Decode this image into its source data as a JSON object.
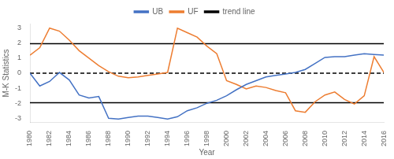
{
  "chart_data": {
    "type": "line",
    "xlabel": "Year",
    "ylabel": "M-K Statistics",
    "x": [
      1980,
      1981,
      1982,
      1983,
      1984,
      1985,
      1986,
      1987,
      1988,
      1989,
      1990,
      1991,
      1992,
      1993,
      1994,
      1995,
      1996,
      1997,
      1998,
      1999,
      2000,
      2001,
      2002,
      2003,
      2004,
      2005,
      2006,
      2007,
      2008,
      2009,
      2010,
      2011,
      2012,
      2013,
      2014,
      2015,
      2016
    ],
    "series": [
      {
        "name": "UB",
        "color": "#4472C4",
        "values": [
          0.0,
          -0.85,
          -0.55,
          0.05,
          -0.45,
          -1.45,
          -1.65,
          -1.55,
          -3.0,
          -3.05,
          -2.95,
          -2.85,
          -2.85,
          -2.95,
          -3.05,
          -2.9,
          -2.5,
          -2.3,
          -2.0,
          -1.8,
          -1.5,
          -1.1,
          -0.75,
          -0.5,
          -0.25,
          -0.15,
          -0.05,
          0.05,
          0.25,
          0.65,
          1.05,
          1.1,
          1.1,
          1.2,
          1.3,
          1.25,
          1.2
        ]
      },
      {
        "name": "UF",
        "color": "#ED7D31",
        "values": [
          1.2,
          1.7,
          3.0,
          2.8,
          2.2,
          1.5,
          1.0,
          0.5,
          0.1,
          -0.2,
          -0.3,
          -0.25,
          -0.15,
          -0.05,
          0.05,
          3.0,
          2.7,
          2.4,
          1.8,
          1.3,
          -0.5,
          -0.75,
          -1.05,
          -0.85,
          -0.95,
          -1.15,
          -1.3,
          -2.5,
          -2.6,
          -1.9,
          -1.45,
          -1.25,
          -1.75,
          -2.05,
          -1.5,
          1.1,
          0.05
        ]
      }
    ],
    "reference_lines": [
      {
        "name": "trend line",
        "y": 1.96,
        "color": "#000000",
        "line_style": "solid"
      },
      {
        "name": "trend line",
        "y": -1.96,
        "color": "#000000",
        "line_style": "solid"
      },
      {
        "y": 0.0,
        "color": "#000000",
        "line_style": "dashed"
      }
    ],
    "xlim": [
      1980,
      2016
    ],
    "xticks": [
      1980,
      1982,
      1984,
      1986,
      1988,
      1990,
      1992,
      1994,
      1996,
      1998,
      2000,
      2002,
      2004,
      2006,
      2008,
      2010,
      2012,
      2014,
      2016
    ],
    "ylim": [
      -3.3,
      3.3
    ],
    "yticks": [
      -3,
      -2,
      -1,
      0,
      1,
      2,
      3
    ],
    "grid": false,
    "legend": "top"
  }
}
